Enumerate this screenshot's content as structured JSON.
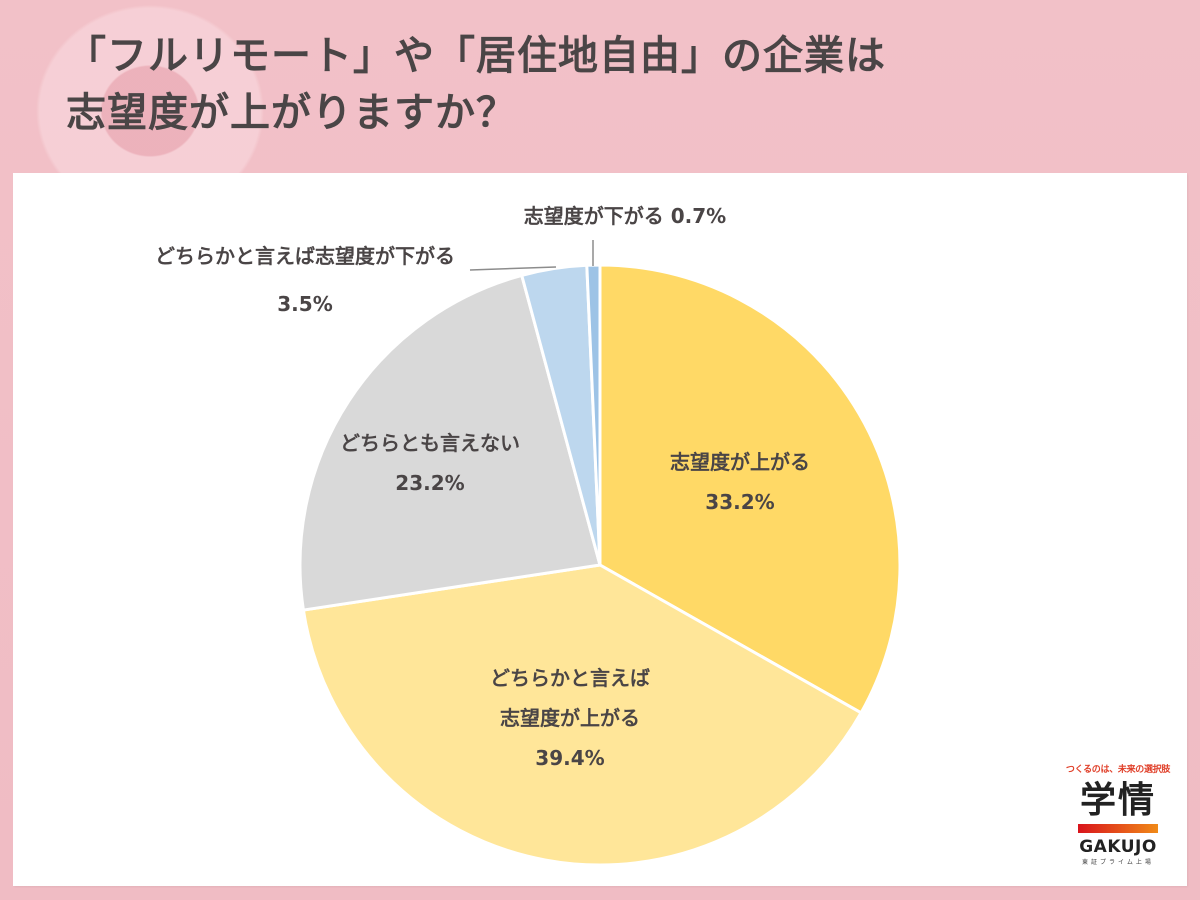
{
  "title": {
    "line1": "「フルリモート」や「居住地自由」の企業は",
    "line2": "志望度が上がりますか？"
  },
  "chart_data": {
    "type": "pie",
    "title": "「フルリモート」や「居住地自由」の企業は志望度が上がりますか？",
    "start_angle": "12 o'clock",
    "direction": "clockwise",
    "categories": [
      "志望度が上がる",
      "どちらかと言えば志望度が上がる",
      "どちらとも言えない",
      "どちらかと言えば志望度が下がる",
      "志望度が下がる"
    ],
    "values": [
      33.2,
      39.4,
      23.2,
      3.5,
      0.7
    ],
    "unit": "%",
    "colors": [
      "#ffd966",
      "#ffe699",
      "#d9d9d9",
      "#bdd7ee",
      "#9dc3e6"
    ],
    "labels": [
      {
        "lines": [
          "志望度が上がる",
          "33.2%"
        ]
      },
      {
        "lines": [
          "どちらかと言えば",
          "志望度が上がる",
          "39.4%"
        ]
      },
      {
        "lines": [
          "どちらとも言えない",
          "23.2%"
        ]
      },
      {
        "lines": [
          "どちらかと言えば志望度が下がる",
          "3.5%"
        ]
      },
      {
        "lines": [
          "志望度が下がる 0.7%"
        ]
      }
    ],
    "legend": "none (data labels on slices)"
  },
  "logo": {
    "tagline": "つくるのは、未来の選択肢",
    "mark": "学情",
    "name_en": "GAKUJO",
    "sub": "東証プライム上場",
    "bar_colors": [
      "#d9141c",
      "#f08a18"
    ]
  }
}
